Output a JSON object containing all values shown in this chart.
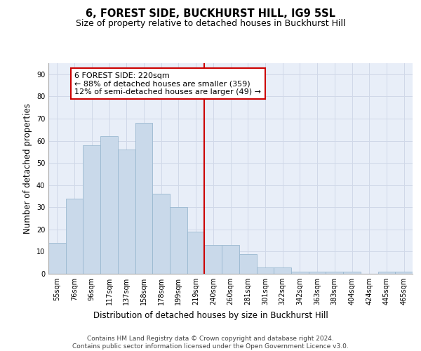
{
  "title": "6, FOREST SIDE, BUCKHURST HILL, IG9 5SL",
  "subtitle": "Size of property relative to detached houses in Buckhurst Hill",
  "xlabel": "Distribution of detached houses by size in Buckhurst Hill",
  "ylabel": "Number of detached properties",
  "categories": [
    "55sqm",
    "76sqm",
    "96sqm",
    "117sqm",
    "137sqm",
    "158sqm",
    "178sqm",
    "199sqm",
    "219sqm",
    "240sqm",
    "260sqm",
    "281sqm",
    "301sqm",
    "322sqm",
    "342sqm",
    "363sqm",
    "383sqm",
    "404sqm",
    "424sqm",
    "445sqm",
    "465sqm"
  ],
  "values": [
    14,
    34,
    58,
    62,
    56,
    68,
    36,
    30,
    19,
    13,
    13,
    9,
    3,
    3,
    1,
    1,
    1,
    1,
    0,
    1,
    1
  ],
  "bar_color": "#c9d9ea",
  "bar_edge_color": "#9ab8d0",
  "grid_color": "#d0d8e8",
  "background_color": "#e8eef8",
  "vline_x": 8.5,
  "vline_color": "#cc0000",
  "annotation_text": "6 FOREST SIDE: 220sqm\n← 88% of detached houses are smaller (359)\n12% of semi-detached houses are larger (49) →",
  "annotation_box_color": "#ffffff",
  "annotation_box_edge_color": "#cc0000",
  "ylim": [
    0,
    95
  ],
  "yticks": [
    0,
    10,
    20,
    30,
    40,
    50,
    60,
    70,
    80,
    90
  ],
  "footer_line1": "Contains HM Land Registry data © Crown copyright and database right 2024.",
  "footer_line2": "Contains public sector information licensed under the Open Government Licence v3.0.",
  "title_fontsize": 10.5,
  "subtitle_fontsize": 9,
  "axis_label_fontsize": 8.5,
  "tick_fontsize": 7,
  "annotation_fontsize": 8,
  "footer_fontsize": 6.5
}
